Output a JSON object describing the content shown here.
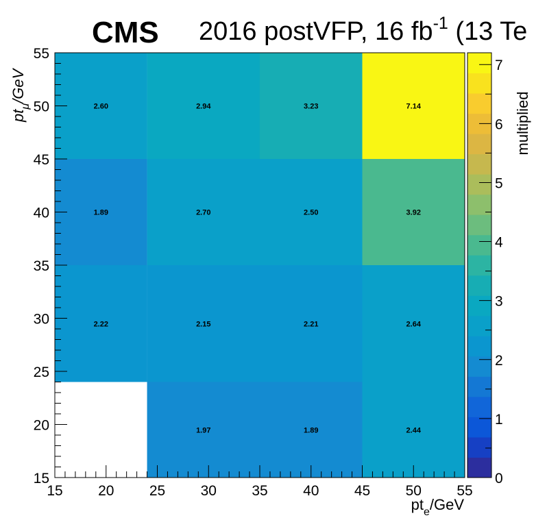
{
  "header": {
    "experiment": "CMS",
    "lumi_prefix": "2016 postVFP, 16 fb",
    "lumi_exp": "-1",
    "lumi_suffix": " (13 Te"
  },
  "chart_data": {
    "type": "heatmap",
    "xlabel_main": "pt",
    "xlabel_sub": "e",
    "xlabel_tail": "/GeV",
    "ylabel_main": "pt",
    "ylabel_sub": "μ",
    "ylabel_tail": "/GeV",
    "zlabel": "multiplied",
    "xlim": [
      15,
      55
    ],
    "ylim": [
      15,
      55
    ],
    "zlim": [
      0,
      7.2
    ],
    "x_edges": [
      15,
      24,
      35,
      45,
      55
    ],
    "y_edges": [
      15,
      24,
      35,
      45,
      55
    ],
    "x_ticks": [
      15,
      20,
      25,
      30,
      35,
      40,
      45,
      50,
      55
    ],
    "y_ticks": [
      15,
      20,
      25,
      30,
      35,
      40,
      45,
      50,
      55
    ],
    "z_ticks": [
      0,
      1,
      2,
      3,
      4,
      5,
      6,
      7
    ],
    "cells": [
      {
        "xi": 1,
        "yi": 0,
        "value": 1.97,
        "label": "1.97"
      },
      {
        "xi": 2,
        "yi": 0,
        "value": 1.89,
        "label": "1.89"
      },
      {
        "xi": 3,
        "yi": 0,
        "value": 2.44,
        "label": "2.44"
      },
      {
        "xi": 0,
        "yi": 1,
        "value": 2.22,
        "label": "2.22"
      },
      {
        "xi": 1,
        "yi": 1,
        "value": 2.15,
        "label": "2.15"
      },
      {
        "xi": 2,
        "yi": 1,
        "value": 2.21,
        "label": "2.21"
      },
      {
        "xi": 3,
        "yi": 1,
        "value": 2.64,
        "label": "2.64"
      },
      {
        "xi": 0,
        "yi": 2,
        "value": 1.89,
        "label": "1.89"
      },
      {
        "xi": 1,
        "yi": 2,
        "value": 2.7,
        "label": "2.70"
      },
      {
        "xi": 2,
        "yi": 2,
        "value": 2.5,
        "label": "2.50"
      },
      {
        "xi": 3,
        "yi": 2,
        "value": 3.92,
        "label": "3.92"
      },
      {
        "xi": 0,
        "yi": 3,
        "value": 2.6,
        "label": "2.60"
      },
      {
        "xi": 1,
        "yi": 3,
        "value": 2.94,
        "label": "2.94"
      },
      {
        "xi": 2,
        "yi": 3,
        "value": 3.23,
        "label": "3.23"
      },
      {
        "xi": 3,
        "yi": 3,
        "value": 7.14,
        "label": "7.14"
      }
    ],
    "palette_steps": [
      "#2c2e9e",
      "#1640c4",
      "#0c57d8",
      "#1166d9",
      "#1478d4",
      "#148bd1",
      "#0b96cf",
      "#0aa0c9",
      "#0aa8c1",
      "#17adb4",
      "#2cb4a3",
      "#4ab98f",
      "#6cbd7e",
      "#8dbf6c",
      "#abbd5b",
      "#c6b84e",
      "#dcb643",
      "#edbd37",
      "#f9cc2e",
      "#f9e21e",
      "#f9f614"
    ]
  }
}
